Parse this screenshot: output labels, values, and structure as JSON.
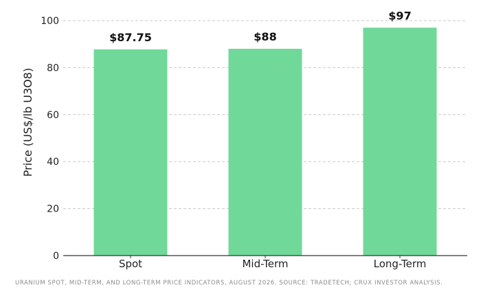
{
  "chart_data": {
    "type": "bar",
    "categories": [
      "Spot",
      "Mid-Term",
      "Long-Term"
    ],
    "values": [
      87.75,
      88,
      97
    ],
    "data_labels": [
      "$87.75",
      "$88",
      "$97"
    ],
    "ylabel": "Price (US$/lb U3O8)",
    "xlabel": "",
    "ylim": [
      0,
      100
    ],
    "yticks": [
      "0",
      "20",
      "40",
      "60",
      "80",
      "100"
    ],
    "grid": "horizontal dashed",
    "bar_color": "#70d898"
  },
  "caption": "Uranium spot, mid-term, and long-term price indicators, August 2026. Source: TradeTech; Crux Investor analysis."
}
